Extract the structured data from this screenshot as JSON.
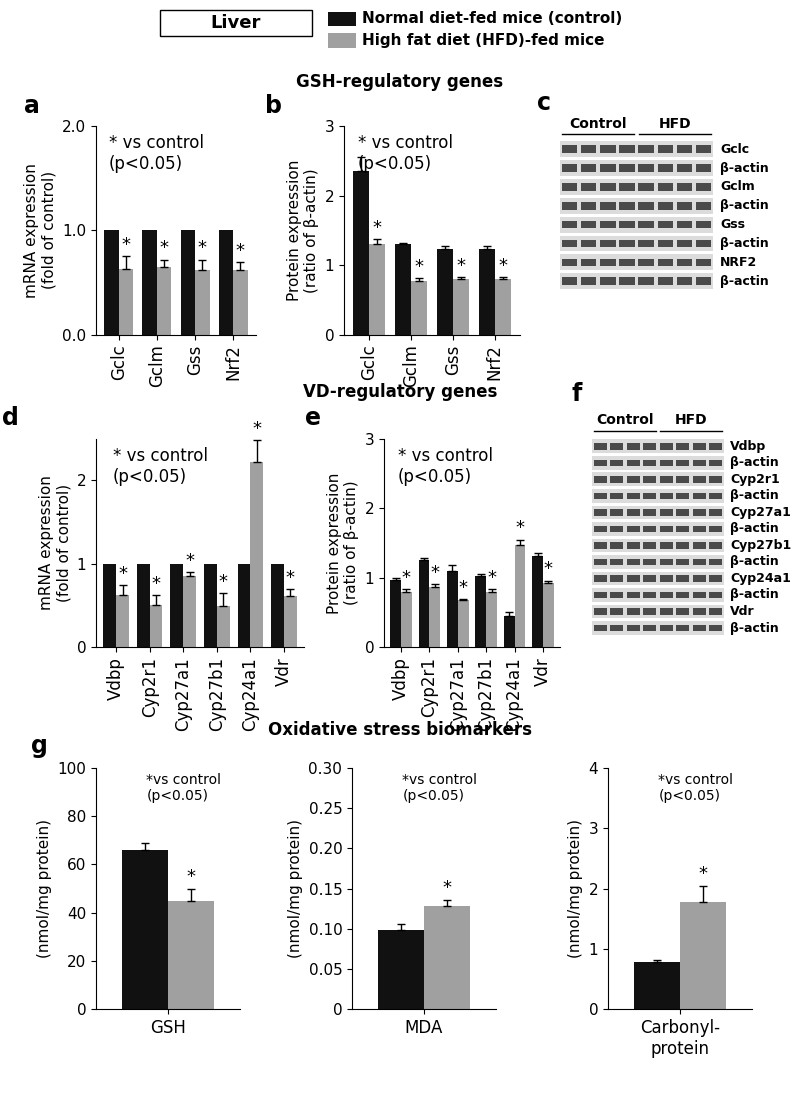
{
  "header": {
    "label": "Liver",
    "entries": [
      {
        "name": "Normal diet-fed mice (control)",
        "color": "#111111"
      },
      {
        "name": "High fat diet (HFD)-fed mice",
        "color": "#a0a0a0"
      }
    ]
  },
  "sections": [
    "GSH-regulatory genes",
    "VD-regulatory genes",
    "Oxidative stress biomarkers"
  ],
  "chart_data": [
    {
      "type": "bar",
      "panel": "a",
      "ylabel": "mRNA expression\n(fold of control)",
      "annotation": "* vs control\n(p<0.05)",
      "categories": [
        "Gclc",
        "Gclm",
        "Gss",
        "Nrf2"
      ],
      "series": [
        {
          "color": "#111111",
          "values": [
            1,
            1,
            1,
            1
          ]
        },
        {
          "color": "#a0a0a0",
          "values": [
            0.63,
            0.65,
            0.62,
            0.62
          ],
          "errors": [
            0.12,
            0.07,
            0.1,
            0.08
          ],
          "significance": [
            "*",
            "*",
            "*",
            "*"
          ]
        }
      ],
      "ylim": [
        0,
        2
      ],
      "yticks": [
        {
          "value": 0,
          "label": "0.0"
        },
        {
          "value": 1,
          "label": "1.0"
        },
        {
          "value": 2,
          "label": "2.0"
        }
      ]
    },
    {
      "type": "bar",
      "panel": "b",
      "ylabel": "Protein expression\n(ratio of β-actin)",
      "annotation": "* vs control\n(p<0.05)",
      "categories": [
        "Gclc",
        "Gclm",
        "Gss",
        "Nrf2"
      ],
      "series": [
        {
          "color": "#111111",
          "values": [
            2.35,
            1.3,
            1.23,
            1.23
          ],
          "errors": [
            0.2,
            0.02,
            0.05,
            0.05
          ]
        },
        {
          "color": "#a0a0a0",
          "values": [
            1.3,
            0.77,
            0.8,
            0.8
          ],
          "errors": [
            0.08,
            0.04,
            0.03,
            0.03
          ],
          "significance": [
            "*",
            "*",
            "*",
            "*"
          ]
        }
      ],
      "ylim": [
        0,
        3
      ],
      "yticks": [
        0,
        1,
        2,
        3
      ]
    },
    {
      "type": "bar",
      "panel": "d",
      "ylabel": "mRNA expression\n(fold of control)",
      "annotation": "* vs control\n(p<0.05)",
      "categories": [
        "Vdbp",
        "Cyp2r1",
        "Cyp27a1",
        "Cyp27b1",
        "Cyp24a1",
        "Vdr"
      ],
      "series": [
        {
          "color": "#111111",
          "values": [
            1,
            1,
            1,
            1,
            1,
            1
          ]
        },
        {
          "color": "#a0a0a0",
          "values": [
            0.63,
            0.51,
            0.85,
            0.5,
            2.22,
            0.61
          ],
          "errors": [
            0.12,
            0.12,
            0.05,
            0.15,
            0.27,
            0.09
          ],
          "significance": [
            "*",
            "*",
            "*",
            "*",
            "*",
            "*"
          ]
        }
      ],
      "ylim": [
        0,
        2.5
      ],
      "yticks": [
        0,
        1,
        2
      ]
    },
    {
      "type": "bar",
      "panel": "e",
      "ylabel": "Protein expression\n(ratio of β-actin)",
      "annotation": "* vs control\n(p<0.05)",
      "categories": [
        "Vdbp",
        "Cyp2r1",
        "Cyp27a1",
        "Cyp27b1",
        "Cyp24a1",
        "Vdr"
      ],
      "series": [
        {
          "color": "#111111",
          "values": [
            0.97,
            1.25,
            1.1,
            1.03,
            0.45,
            1.32
          ],
          "errors": [
            0.03,
            0.04,
            0.08,
            0.02,
            0.06,
            0.04
          ]
        },
        {
          "color": "#a0a0a0",
          "values": [
            0.8,
            0.87,
            0.68,
            0.8,
            1.47,
            0.93
          ],
          "errors": [
            0.04,
            0.04,
            0.02,
            0.04,
            0.08,
            0.03
          ],
          "significance": [
            "*",
            "*",
            "*",
            "*",
            "*",
            "*"
          ]
        }
      ],
      "ylim": [
        0,
        3
      ],
      "yticks": [
        0,
        1,
        2,
        3
      ]
    },
    {
      "type": "bar",
      "panel": "g",
      "ylabel": "(nmol/mg protein)",
      "annotation": "*vs control\n(p<0.05)",
      "categories": [
        "GSH"
      ],
      "series": [
        {
          "color": "#111111",
          "values": [
            66
          ],
          "errors": [
            3
          ]
        },
        {
          "color": "#a0a0a0",
          "values": [
            45
          ],
          "errors": [
            5
          ],
          "significance": [
            "*"
          ]
        }
      ],
      "ylim": [
        0,
        100
      ],
      "yticks": [
        0,
        20,
        40,
        60,
        80,
        100
      ]
    },
    {
      "type": "bar",
      "ylabel": "(nmol/mg protein)",
      "annotation": "*vs control\n(p<0.05)",
      "categories": [
        "MDA"
      ],
      "series": [
        {
          "color": "#111111",
          "values": [
            0.098
          ],
          "errors": [
            0.008
          ]
        },
        {
          "color": "#a0a0a0",
          "values": [
            0.128
          ],
          "errors": [
            0.008
          ],
          "significance": [
            "*"
          ]
        }
      ],
      "ylim": [
        0,
        0.3
      ],
      "yticks": [
        0,
        0.05,
        {
          "value": 0.1,
          "label": "0.10"
        },
        0.15,
        {
          "value": 0.2,
          "label": "0.20"
        },
        0.25,
        {
          "value": 0.3,
          "label": "0.30"
        }
      ]
    },
    {
      "type": "bar",
      "ylabel": "(nmol/mg protein)",
      "annotation": "*vs control\n(p<0.05)",
      "categories": [
        "Carbonyl-\nprotein"
      ],
      "series": [
        {
          "color": "#111111",
          "values": [
            0.78
          ],
          "errors": [
            0.03
          ]
        },
        {
          "color": "#a0a0a0",
          "values": [
            1.77
          ],
          "errors": [
            0.28
          ],
          "significance": [
            "*"
          ]
        }
      ],
      "ylim": [
        0,
        4
      ],
      "yticks": [
        0,
        1,
        2,
        3,
        4
      ]
    }
  ],
  "blots": [
    {
      "panel": "c",
      "groups": [
        "Control",
        "HFD"
      ],
      "rows": [
        "Gclc",
        "β-actin",
        "Gclm",
        "β-actin",
        "Gss",
        "β-actin",
        "NRF2",
        "β-actin"
      ]
    },
    {
      "panel": "f",
      "groups": [
        "Control",
        "HFD"
      ],
      "rows": [
        "Vdbp",
        "β-actin",
        "Cyp2r1",
        "β-actin",
        "Cyp27a1",
        "β-actin",
        "Cyp27b1",
        "β-actin",
        "Cyp24a1",
        "β-actin",
        "Vdr",
        "β-actin"
      ]
    }
  ]
}
